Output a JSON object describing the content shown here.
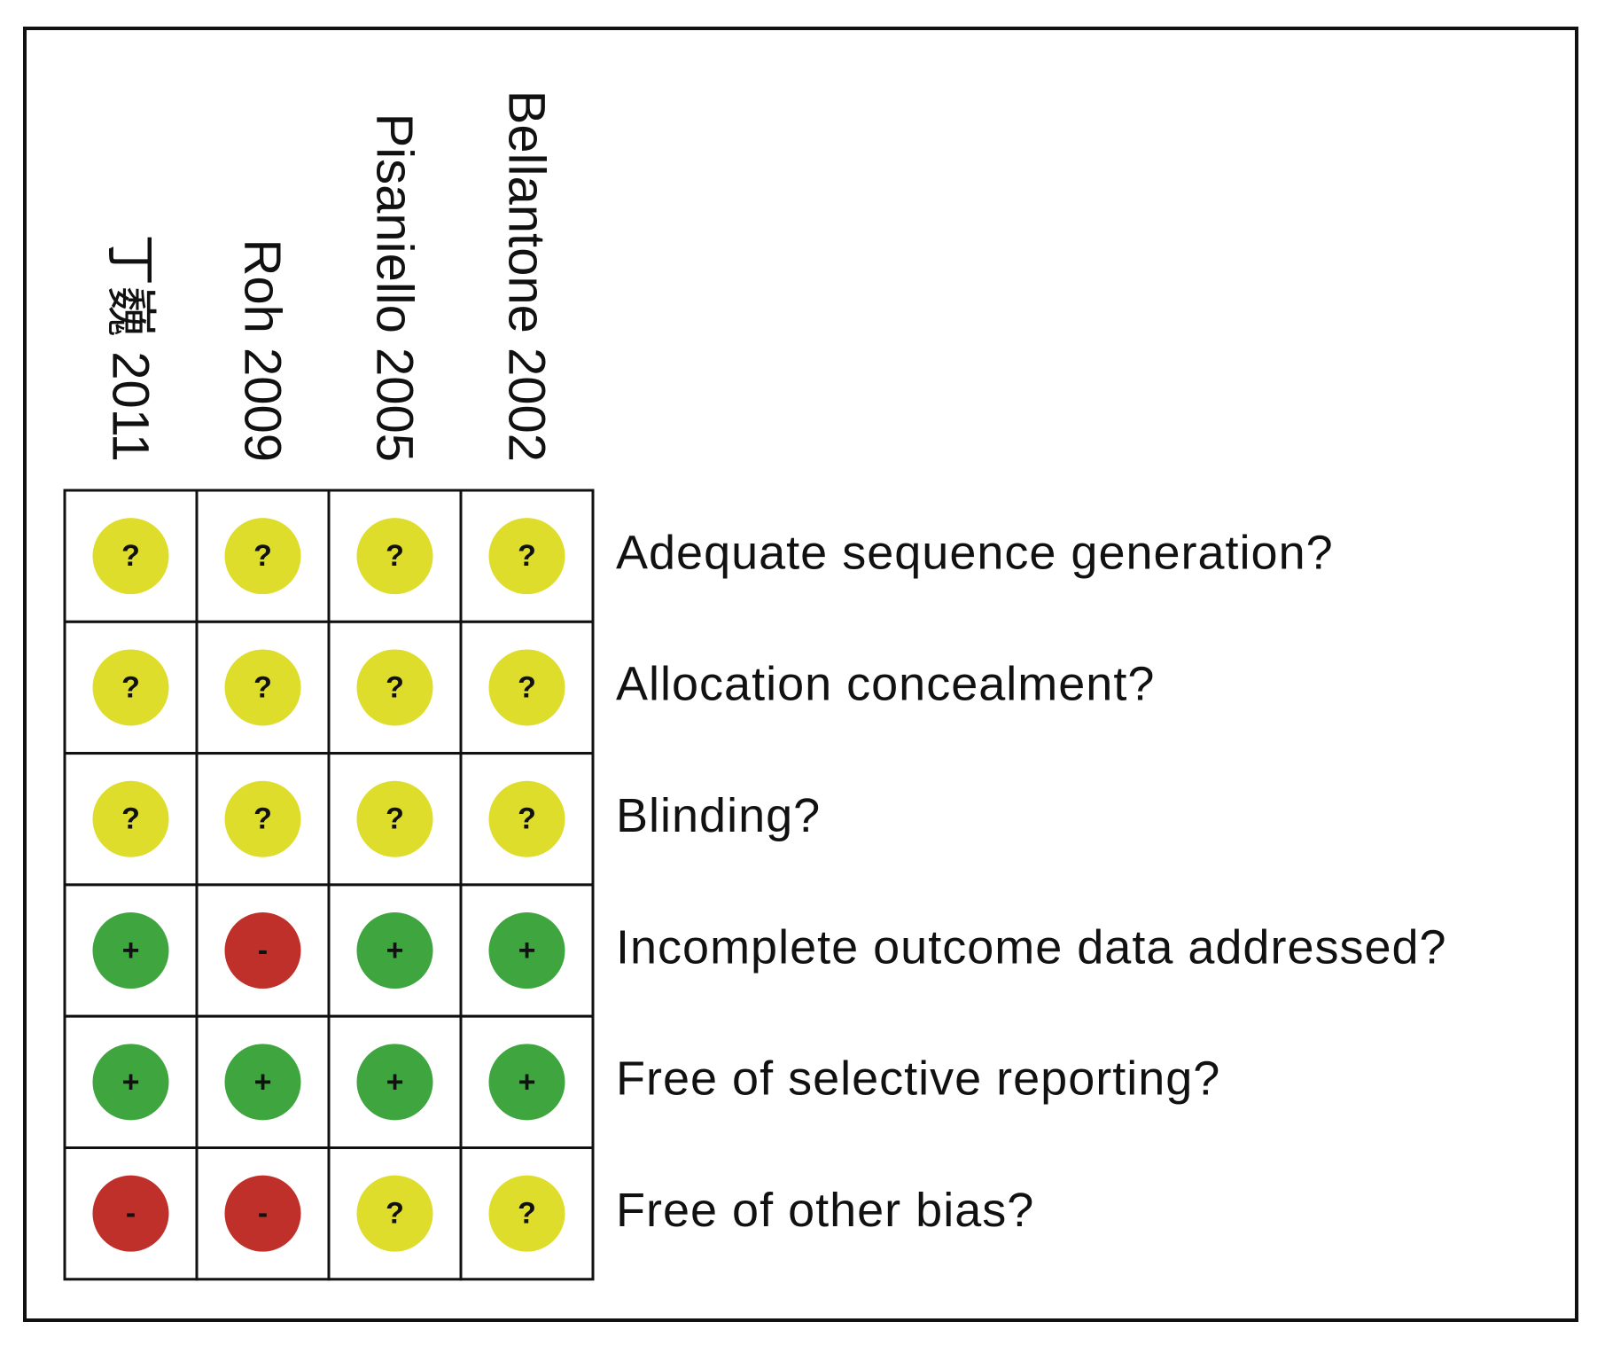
{
  "studies": [
    "丁巍 2011",
    "Roh 2009",
    "Pisaniello 2005",
    "Bellantone 2002"
  ],
  "domains": [
    "Adequate sequence generation?",
    "Allocation concealment?",
    "Blinding?",
    "Incomplete outcome data addressed?",
    "Free of selective reporting?",
    "Free of other bias?"
  ],
  "judgments": [
    [
      "?",
      "?",
      "?",
      "?"
    ],
    [
      "?",
      "?",
      "?",
      "?"
    ],
    [
      "?",
      "?",
      "?",
      "?"
    ],
    [
      "+",
      "-",
      "+",
      "+"
    ],
    [
      "+",
      "+",
      "+",
      "+"
    ],
    [
      "-",
      "-",
      "?",
      "?"
    ]
  ],
  "colors": {
    "?": "#dedd2c",
    "+": "#3fa53f",
    "-": "#c0302a"
  }
}
